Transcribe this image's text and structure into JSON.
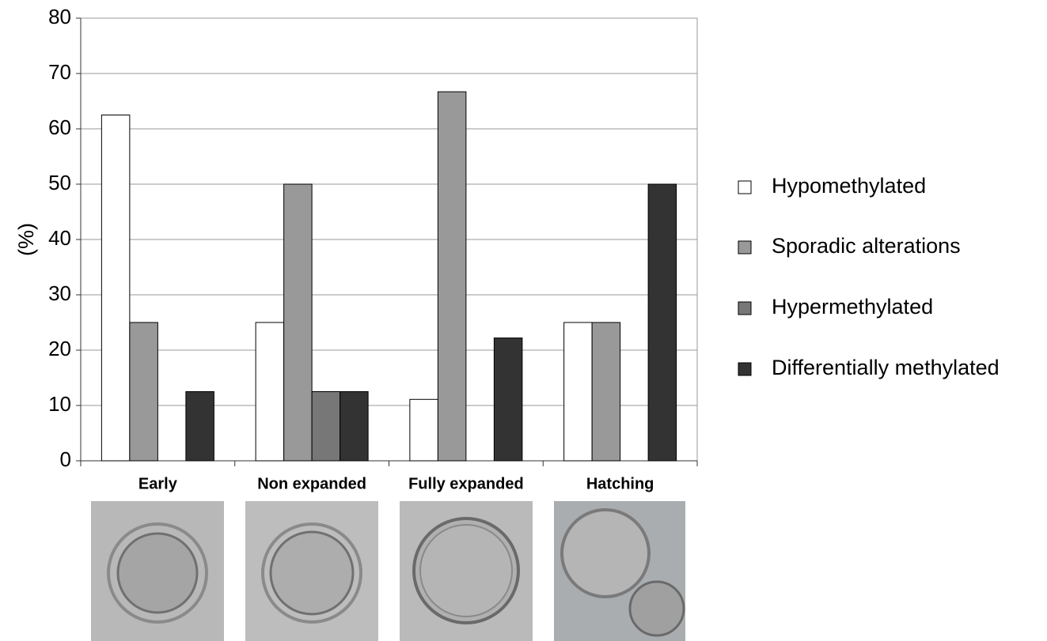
{
  "chart_data": {
    "type": "bar",
    "y_label": "(%)",
    "categories": [
      "Early",
      "Non expanded",
      "Fully expanded",
      "Hatching"
    ],
    "series": [
      {
        "name": "Hypomethylated",
        "color": "#ffffff",
        "values": [
          62.5,
          25,
          11.1,
          25
        ]
      },
      {
        "name": "Sporadic alterations",
        "color": "#999999",
        "values": [
          25,
          50,
          66.7,
          25
        ]
      },
      {
        "name": "Hypermethylated",
        "color": "#777777",
        "values": [
          0,
          12.5,
          0,
          0
        ]
      },
      {
        "name": "Differentially methylated",
        "color": "#333333",
        "values": [
          12.5,
          12.5,
          22.2,
          50
        ]
      }
    ],
    "ylim": [
      0,
      80
    ],
    "yticks": [
      0,
      10,
      20,
      30,
      40,
      50,
      60,
      70,
      80
    ],
    "grid": true,
    "legend": "right"
  }
}
